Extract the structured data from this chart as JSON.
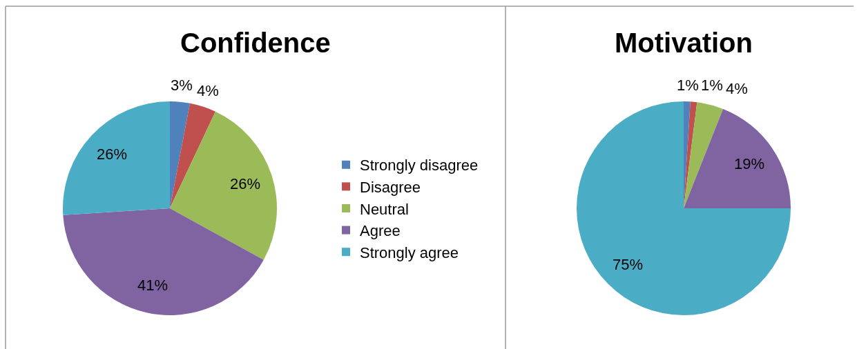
{
  "chart_data": [
    {
      "type": "pie",
      "title": "Confidence",
      "categories": [
        "Strongly disagree",
        "Disagree",
        "Neutral",
        "Agree",
        "Strongly agree"
      ],
      "values": [
        3,
        4,
        26,
        41,
        26
      ],
      "colors": [
        "#4f81bd",
        "#c0504d",
        "#9bbb59",
        "#8064a2",
        "#4bacc6"
      ],
      "value_labels": [
        "3%",
        "4%",
        "26%",
        "41%",
        "26%"
      ],
      "legend": "right"
    },
    {
      "type": "pie",
      "title": "Motivation",
      "categories": [
        null,
        null,
        null,
        null,
        null
      ],
      "values": [
        1,
        1,
        4,
        19,
        75
      ],
      "colors": [
        "#4f81bd",
        "#c0504d",
        "#9bbb59",
        "#8064a2",
        "#4bacc6"
      ],
      "value_labels": [
        "1%",
        "1%",
        "4%",
        "19%",
        "75%"
      ]
    }
  ]
}
